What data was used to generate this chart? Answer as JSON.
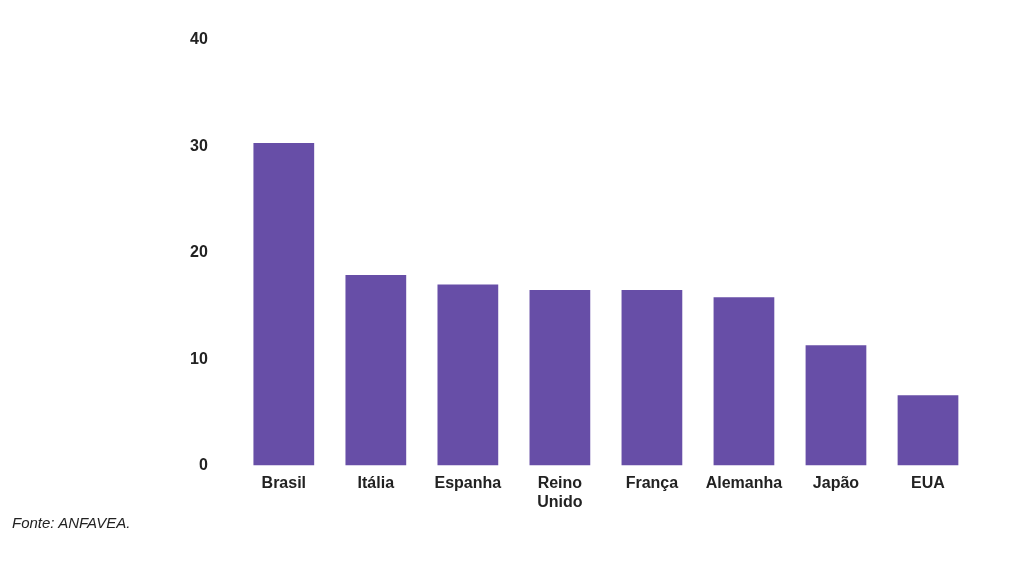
{
  "chart_data": {
    "type": "bar",
    "categories": [
      "Brasil",
      "Itália",
      "Espanha",
      "Reino Unido",
      "França",
      "Alemanha",
      "Japão",
      "EUA"
    ],
    "values": [
      30.3,
      17.9,
      17.0,
      16.5,
      16.5,
      15.8,
      11.3,
      6.6
    ],
    "color": "#674ea7",
    "ylim": [
      0,
      40
    ],
    "yticks": [
      0,
      10,
      20,
      30,
      40
    ],
    "grid": false,
    "legend": false,
    "annotations": [
      "Fonte: ANFAVEA."
    ]
  }
}
